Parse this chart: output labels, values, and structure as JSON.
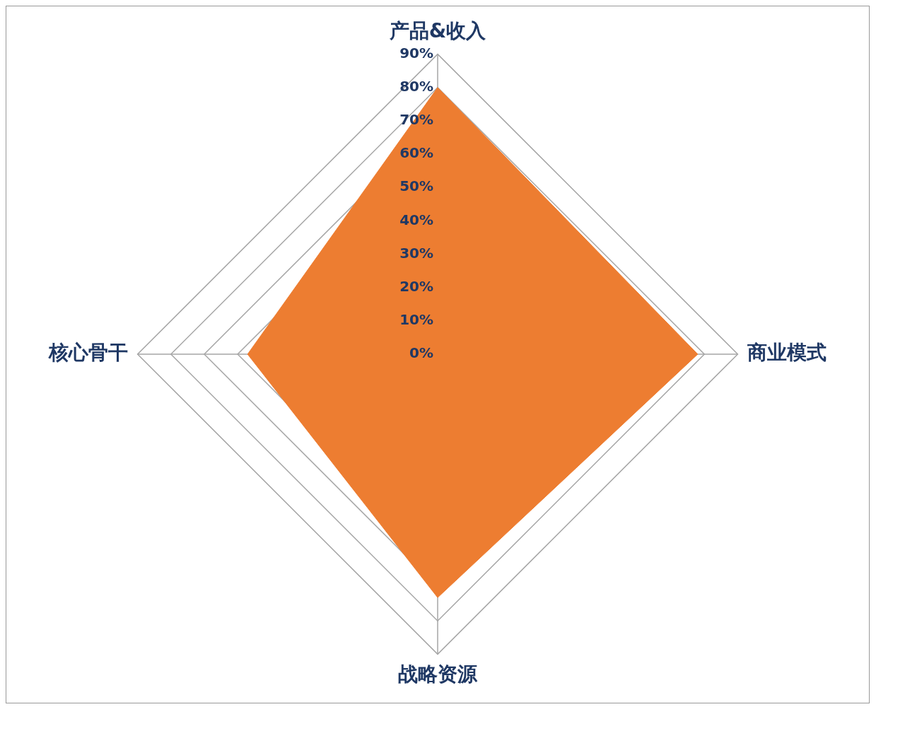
{
  "chart_data": {
    "type": "radar",
    "categories": [
      "产品&收入",
      "商业模式",
      "战略资源",
      "核心骨干"
    ],
    "series": [
      {
        "color": "#ed7d31",
        "values": [
          80,
          78,
          73,
          57
        ]
      }
    ],
    "ylim": [
      0,
      90
    ],
    "yticks": [
      {
        "value": 0,
        "label": "0%"
      },
      {
        "value": 10,
        "label": "10%"
      },
      {
        "value": 20,
        "label": "20%"
      },
      {
        "value": 30,
        "label": "30%"
      },
      {
        "value": 40,
        "label": "40%"
      },
      {
        "value": 50,
        "label": "50%"
      },
      {
        "value": 60,
        "label": "60%"
      },
      {
        "value": 70,
        "label": "70%"
      },
      {
        "value": 80,
        "label": "80%"
      },
      {
        "value": 90,
        "label": "90%"
      }
    ],
    "grid": true,
    "legend": false,
    "marker": "none"
  }
}
